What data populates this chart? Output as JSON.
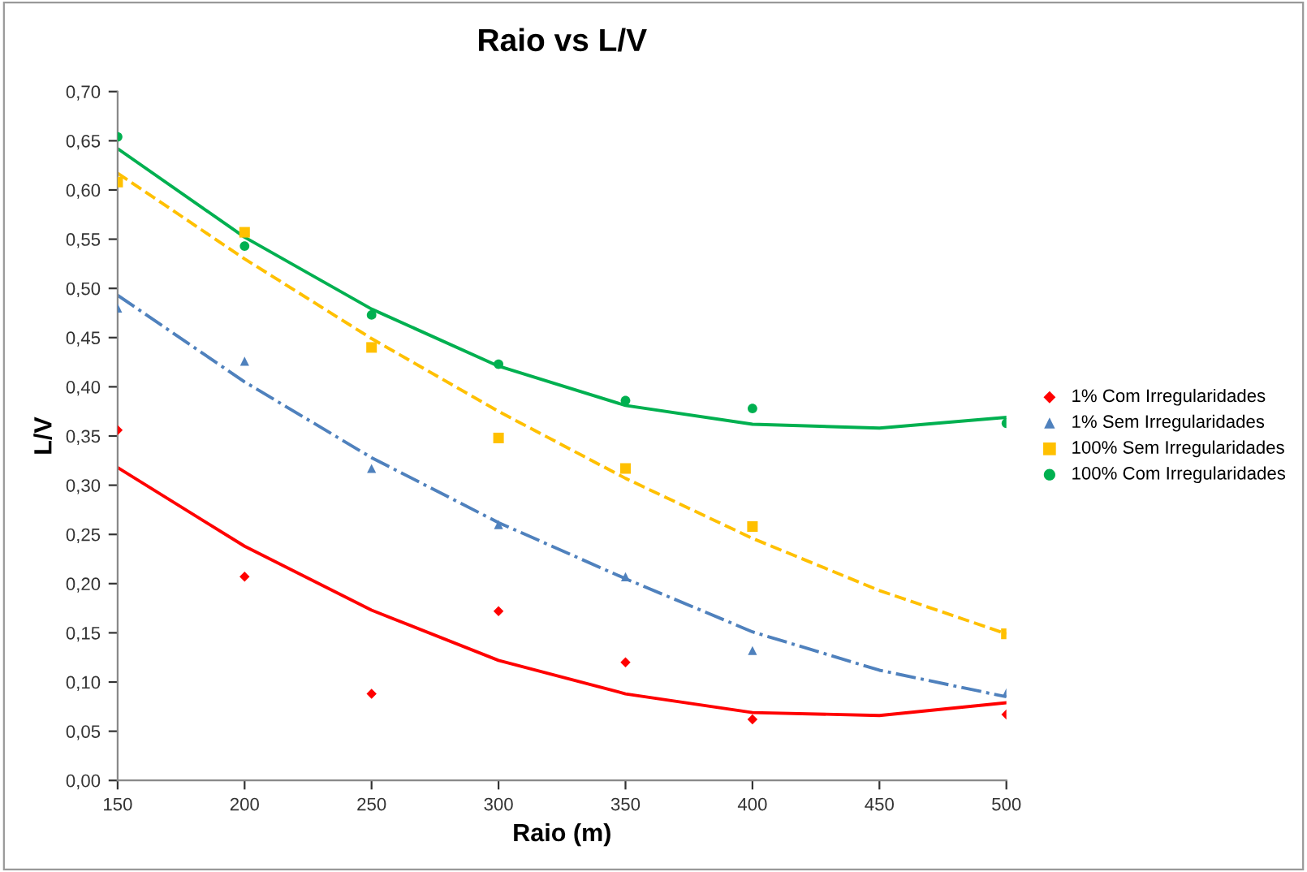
{
  "chart_data": {
    "type": "scatter",
    "title": "Raio vs L/V",
    "xlabel": "Raio (m)",
    "ylabel": "L/V",
    "xlim": [
      150,
      500
    ],
    "xticks": [
      150,
      200,
      250,
      300,
      350,
      400,
      450,
      500
    ],
    "ylim": [
      0,
      0.7
    ],
    "yticks": [
      {
        "value": 0,
        "label": "0,00"
      },
      {
        "value": 0.05,
        "label": "0,05"
      },
      {
        "value": 0.1,
        "label": "0,10"
      },
      {
        "value": 0.15,
        "label": "0,15"
      },
      {
        "value": 0.2,
        "label": "0,20"
      },
      {
        "value": 0.25,
        "label": "0,25"
      },
      {
        "value": 0.3,
        "label": "0,30"
      },
      {
        "value": 0.35,
        "label": "0,35"
      },
      {
        "value": 0.4,
        "label": "0,40"
      },
      {
        "value": 0.45,
        "label": "0,45"
      },
      {
        "value": 0.5,
        "label": "0,50"
      },
      {
        "value": 0.55,
        "label": "0,55"
      },
      {
        "value": 0.6,
        "label": "0,60"
      },
      {
        "value": 0.65,
        "label": "0,65"
      },
      {
        "value": 0.7,
        "label": "0,70"
      }
    ],
    "grid": false,
    "legend": "right",
    "series": [
      {
        "name": "1% Com Irregularidades",
        "color": "#ff0000",
        "marker": "diamond",
        "x": [
          150,
          200,
          250,
          300,
          350,
          400,
          500
        ],
        "values": [
          0.356,
          0.207,
          0.088,
          0.172,
          0.12,
          0.062,
          0.067
        ]
      },
      {
        "name": "1% Sem Irregularidades",
        "color": "#4f81bd",
        "marker": "triangle",
        "x": [
          150,
          200,
          250,
          300,
          350,
          400,
          500
        ],
        "values": [
          0.48,
          0.426,
          0.317,
          0.26,
          0.207,
          0.132,
          0.089
        ]
      },
      {
        "name": "100% Sem Irregularidades",
        "color": "#ffc000",
        "marker": "square",
        "x": [
          150,
          200,
          250,
          300,
          350,
          400,
          500
        ],
        "values": [
          0.608,
          0.557,
          0.44,
          0.348,
          0.317,
          0.258,
          0.149
        ]
      },
      {
        "name": "100% Com Irregularidades",
        "color": "#00b050",
        "marker": "circle",
        "x": [
          150,
          200,
          250,
          300,
          350,
          400,
          500
        ],
        "values": [
          0.654,
          0.543,
          0.473,
          0.423,
          0.386,
          0.378,
          0.363
        ]
      },
      {
        "type": "line",
        "color": "#ff0000",
        "line_style": "solid",
        "x": [
          150,
          200,
          250,
          300,
          350,
          400,
          450,
          500
        ],
        "values": [
          0.318,
          0.238,
          0.173,
          0.122,
          0.088,
          0.069,
          0.066,
          0.079
        ]
      },
      {
        "type": "line",
        "color": "#4f81bd",
        "line_style": "dashdot",
        "x": [
          150,
          200,
          250,
          300,
          350,
          400,
          450,
          500
        ],
        "values": [
          0.493,
          0.405,
          0.328,
          0.262,
          0.205,
          0.151,
          0.112,
          0.085
        ]
      },
      {
        "type": "line",
        "color": "#ffc000",
        "line_style": "dashed",
        "x": [
          150,
          200,
          250,
          300,
          350,
          400,
          450,
          500
        ],
        "values": [
          0.617,
          0.53,
          0.449,
          0.375,
          0.307,
          0.246,
          0.193,
          0.149
        ]
      },
      {
        "type": "line",
        "color": "#00b050",
        "line_style": "solid",
        "x": [
          150,
          200,
          250,
          300,
          350,
          400,
          450,
          500
        ],
        "values": [
          0.642,
          0.552,
          0.479,
          0.421,
          0.381,
          0.362,
          0.358,
          0.369
        ]
      }
    ]
  }
}
